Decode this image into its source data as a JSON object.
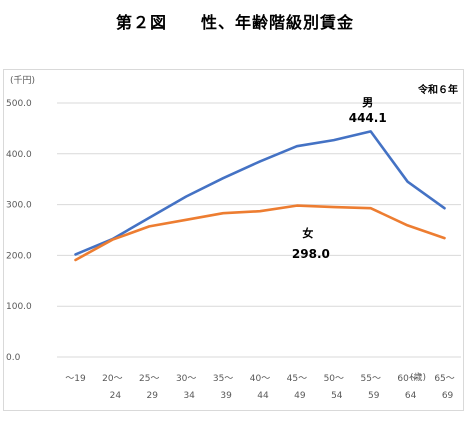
{
  "title": "第２図　　性、年齢階級別賃金",
  "chart_data": {
    "type": "line",
    "unit_label": "(千円)",
    "era_note": "令和６年",
    "x_unit_label": "(歳)",
    "categories": [
      [
        "～19",
        ""
      ],
      [
        "20～",
        "24"
      ],
      [
        "25～",
        "29"
      ],
      [
        "30～",
        "34"
      ],
      [
        "35～",
        "39"
      ],
      [
        "40～",
        "44"
      ],
      [
        "45～",
        "49"
      ],
      [
        "50～",
        "54"
      ],
      [
        "55～",
        "59"
      ],
      [
        "60～",
        "64"
      ],
      [
        "65～",
        "69"
      ]
    ],
    "ylim": [
      0,
      500
    ],
    "y_ticks": [
      "0.0",
      "100.0",
      "200.0",
      "300.0",
      "400.0",
      "500.0"
    ],
    "grid": true,
    "series": [
      {
        "name": "男",
        "color": "#4472c4",
        "values": [
          202,
          232,
          274,
          316,
          352,
          385,
          415,
          427,
          444.1,
          345,
          293
        ],
        "annotation": "444.1",
        "annotation_index": 8
      },
      {
        "name": "女",
        "color": "#ed7d31",
        "values": [
          191,
          231,
          257,
          270,
          283,
          287,
          298.0,
          295,
          293,
          259,
          234
        ],
        "annotation": "298.0",
        "annotation_index": 6
      }
    ]
  }
}
